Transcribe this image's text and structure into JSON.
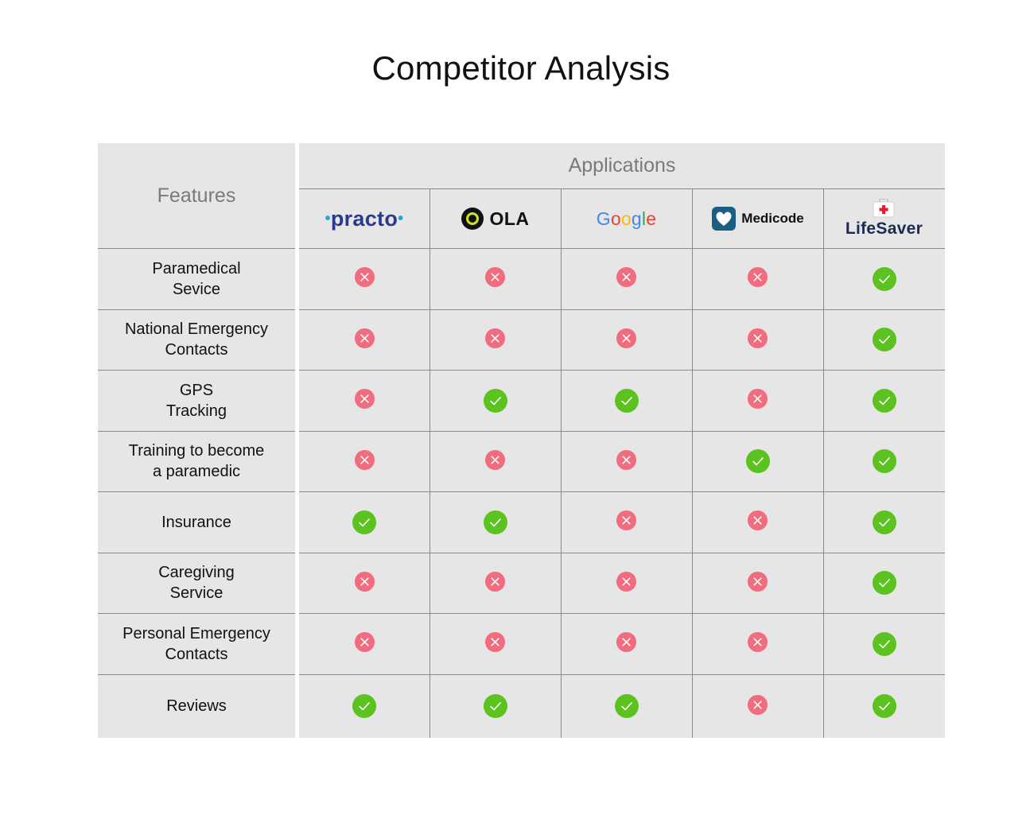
{
  "title": "Competitor Analysis",
  "features_header": "Features",
  "applications_header": "Applications",
  "applications": [
    {
      "name": "practo",
      "icon": "practo-logo"
    },
    {
      "name": "OLA",
      "icon": "ola-logo"
    },
    {
      "name": "Google",
      "icon": "google-logo"
    },
    {
      "name": "Medicode",
      "icon": "medicode-logo"
    },
    {
      "name": "LifeSaver",
      "icon": "lifesaver-logo"
    }
  ],
  "features": [
    {
      "label": "Paramedical\nSevice",
      "support": [
        false,
        false,
        false,
        false,
        true
      ]
    },
    {
      "label": "National Emergency\nContacts",
      "support": [
        false,
        false,
        false,
        false,
        true
      ]
    },
    {
      "label": "GPS\nTracking",
      "support": [
        false,
        true,
        true,
        false,
        true
      ]
    },
    {
      "label": "Training to become\na paramedic",
      "support": [
        false,
        false,
        false,
        true,
        true
      ]
    },
    {
      "label": "Insurance",
      "support": [
        true,
        true,
        false,
        false,
        true
      ]
    },
    {
      "label": "Caregiving\nService",
      "support": [
        false,
        false,
        false,
        false,
        true
      ]
    },
    {
      "label": "Personal Emergency\nContacts",
      "support": [
        false,
        false,
        false,
        false,
        true
      ]
    },
    {
      "label": "Reviews",
      "support": [
        true,
        true,
        true,
        false,
        true
      ]
    }
  ],
  "colors": {
    "cross": "#f06c7e",
    "check": "#5cc21f",
    "cell_bg": "#e6e6e6",
    "grid_line": "#8a8a8a"
  }
}
